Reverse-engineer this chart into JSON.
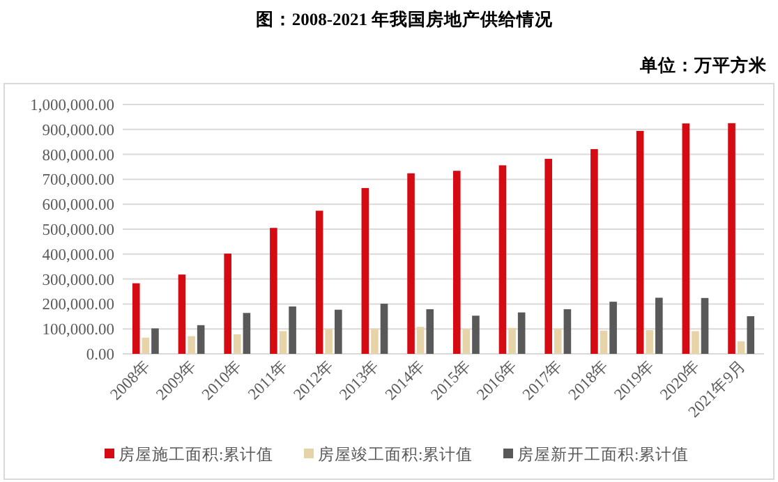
{
  "chart_data": {
    "type": "bar",
    "title": "图：2008-2021 年我国房地产供给情况",
    "subtitle": "单位：万平方米",
    "categories": [
      "2008年",
      "2009年",
      "2010年",
      "2011年",
      "2012年",
      "2013年",
      "2014年",
      "2015年",
      "2016年",
      "2017年",
      "2018年",
      "2019年",
      "2020年",
      "2021年9月"
    ],
    "series": [
      {
        "name": "房屋施工面积:累计值",
        "color": "#d40b13",
        "values": [
          283000,
          318000,
          402000,
          505000,
          574000,
          665000,
          724000,
          734000,
          756000,
          782000,
          821000,
          894000,
          924000,
          925000
        ]
      },
      {
        "name": "房屋竣工面积:累计值",
        "color": "#e6d3a8",
        "values": [
          65000,
          71000,
          78000,
          91000,
          99000,
          101000,
          108000,
          99000,
          104000,
          101000,
          93000,
          95000,
          91000,
          50000
        ]
      },
      {
        "name": "房屋新开工面积:累计值",
        "color": "#595959",
        "values": [
          102000,
          115000,
          164000,
          190000,
          177000,
          201000,
          179000,
          153000,
          166000,
          179000,
          209000,
          225000,
          224000,
          151000
        ]
      }
    ],
    "ylim": [
      0,
      1000000
    ],
    "yticks": [
      {
        "value": 0,
        "label": "0.00"
      },
      {
        "value": 100000,
        "label": "100,000.00"
      },
      {
        "value": 200000,
        "label": "200,000.00"
      },
      {
        "value": 300000,
        "label": "300,000.00"
      },
      {
        "value": 400000,
        "label": "400,000.00"
      },
      {
        "value": 500000,
        "label": "500,000.00"
      },
      {
        "value": 600000,
        "label": "600,000.00"
      },
      {
        "value": 700000,
        "label": "700,000.00"
      },
      {
        "value": 800000,
        "label": "800,000.00"
      },
      {
        "value": 900000,
        "label": "900,000.00"
      },
      {
        "value": 1000000,
        "label": "1,000,000.00"
      }
    ],
    "grid": "y",
    "legend": "bottom"
  }
}
